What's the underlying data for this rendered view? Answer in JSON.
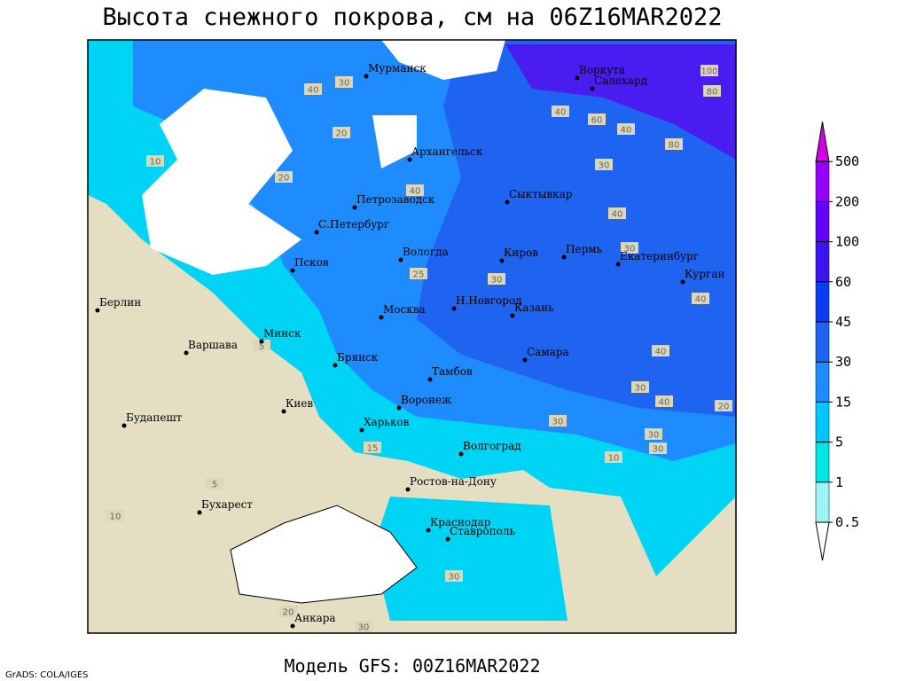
{
  "title": "Высота снежного покрова, см на 06Z16MAR2022",
  "footer": "Модель GFS: 00Z16MAR2022",
  "credit": "GrADS: COLA/IGES",
  "colorbar": {
    "levels": [
      0.5,
      1,
      5,
      15,
      30,
      45,
      60,
      100,
      200,
      500
    ],
    "colors": [
      "#ffffff",
      "#9ef4f4",
      "#00e6e6",
      "#00c8ff",
      "#1e8cff",
      "#1e64f0",
      "#0a3cf0",
      "#3c14f0",
      "#6400ff",
      "#9600ff",
      "#d200e6"
    ]
  },
  "cities": [
    "Мурманск",
    "Воркута",
    "Салехард",
    "Архангельск",
    "Сыктывкар",
    "Петрозаводск",
    "С.Петербург",
    "Вологда",
    "Киров",
    "Пермь",
    "Екатеринбург",
    "Курган",
    "Псков",
    "Берлин",
    "Н.Новгород",
    "Москва",
    "Казань",
    "Минск",
    "Варшава",
    "Брянск",
    "Тамбов",
    "Самара",
    "Киев",
    "Воронеж",
    "Будапешт",
    "Харьков",
    "Волгоград",
    "Ростов-на-Дону",
    "Бухарест",
    "Краснодар",
    "Ставрополь",
    "Анкара"
  ],
  "contour_labels": [
    100,
    80,
    40,
    60,
    40,
    80,
    30,
    40,
    30,
    40,
    40,
    30,
    40,
    20,
    30,
    30,
    30,
    10,
    20,
    20,
    40,
    30,
    40,
    10,
    5,
    5,
    10,
    30,
    20,
    30,
    25,
    30,
    15
  ]
}
